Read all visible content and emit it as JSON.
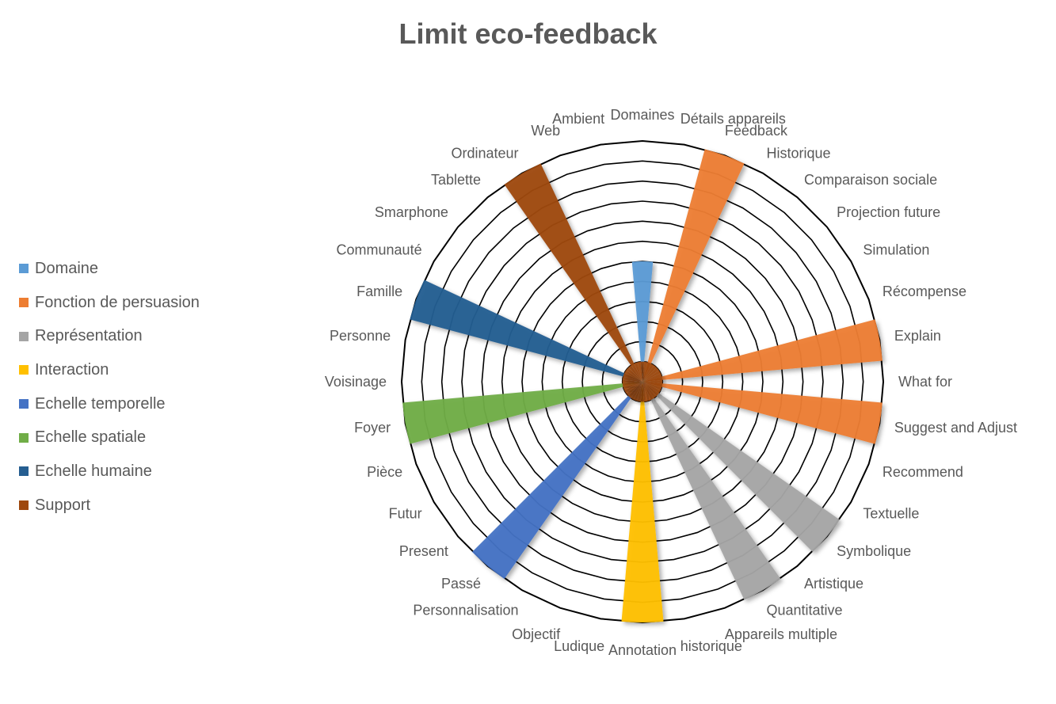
{
  "chart_data": {
    "type": "polar-area",
    "title": "Limit eco-feedback",
    "rmax": 12,
    "ring_count": 12,
    "categories": [
      "Domaines",
      "Détails appareils",
      "Feedback",
      "Historique",
      "Comparaison sociale",
      "Projection future",
      "Simulation",
      "Récompense",
      "Explain",
      "What for",
      "Suggest and Adjust",
      "Recommend",
      "Textuelle",
      "Symbolique",
      "Artistique",
      "Quantitative",
      "Appareils multiple",
      "historique",
      "Annotation",
      "Ludique",
      "Objectif",
      "Personnalisation",
      "Passé",
      "Present",
      "Futur",
      "Pièce",
      "Foyer",
      "Voisinage",
      "Personne",
      "Famille",
      "Communauté",
      "Smarphone",
      "Tablette",
      "Ordinateur",
      "Web",
      "Ambient"
    ],
    "series": [
      {
        "name": "Domaine",
        "color": "#5B9BD5",
        "values": [
          6,
          0,
          0,
          0,
          0,
          0,
          0,
          0,
          0,
          0,
          0,
          0,
          0,
          0,
          0,
          0,
          0,
          0,
          0,
          0,
          0,
          0,
          0,
          0,
          0,
          0,
          0,
          0,
          0,
          0,
          0,
          0,
          0,
          0,
          0,
          0
        ]
      },
      {
        "name": "Fonction de persuasion",
        "color": "#ED7D31",
        "values": [
          0,
          0,
          12,
          0,
          0,
          0,
          0,
          0,
          12,
          0,
          12,
          0,
          0,
          0,
          0,
          0,
          0,
          0,
          0,
          0,
          0,
          0,
          0,
          0,
          0,
          0,
          0,
          0,
          0,
          0,
          0,
          0,
          0,
          0,
          0,
          0
        ]
      },
      {
        "name": "Représentation",
        "color": "#A5A5A5",
        "values": [
          0,
          0,
          0,
          0,
          0,
          0,
          0,
          0,
          0,
          0,
          0,
          0,
          0,
          12,
          0,
          12,
          0,
          0,
          0,
          0,
          0,
          0,
          0,
          0,
          0,
          0,
          0,
          0,
          0,
          0,
          0,
          0,
          0,
          0,
          0,
          0
        ]
      },
      {
        "name": "Interaction",
        "color": "#FFC000",
        "values": [
          0,
          0,
          0,
          0,
          0,
          0,
          0,
          0,
          0,
          0,
          0,
          0,
          0,
          0,
          0,
          0,
          0,
          0,
          12,
          0,
          0,
          0,
          0,
          0,
          0,
          0,
          0,
          0,
          0,
          0,
          0,
          0,
          0,
          0,
          0,
          0
        ]
      },
      {
        "name": "Echelle temporelle",
        "color": "#4472C4",
        "values": [
          0,
          0,
          0,
          0,
          0,
          0,
          0,
          0,
          0,
          0,
          0,
          0,
          0,
          0,
          0,
          0,
          0,
          0,
          0,
          0,
          0,
          0,
          12,
          0,
          0,
          0,
          0,
          0,
          0,
          0,
          0,
          0,
          0,
          0,
          0,
          0
        ]
      },
      {
        "name": "Echelle spatiale",
        "color": "#70AD47",
        "values": [
          0,
          0,
          0,
          0,
          0,
          0,
          0,
          0,
          0,
          0,
          0,
          0,
          0,
          0,
          0,
          0,
          0,
          0,
          0,
          0,
          0,
          0,
          0,
          0,
          0,
          0,
          12,
          0,
          0,
          0,
          0,
          0,
          0,
          0,
          0,
          0
        ]
      },
      {
        "name": "Echelle humaine",
        "color": "#255E91",
        "values": [
          0,
          0,
          0,
          0,
          0,
          0,
          0,
          0,
          0,
          0,
          0,
          0,
          0,
          0,
          0,
          0,
          0,
          0,
          0,
          0,
          0,
          0,
          0,
          0,
          0,
          0,
          0,
          0,
          0,
          12,
          0,
          0,
          0,
          0,
          0,
          0
        ]
      },
      {
        "name": "Support",
        "color": "#9E480E",
        "values": [
          1,
          1,
          1,
          1,
          1,
          1,
          1,
          1,
          1,
          1,
          1,
          1,
          1,
          1,
          1,
          1,
          1,
          1,
          1,
          1,
          1,
          1,
          1,
          1,
          1,
          1,
          1,
          1,
          1,
          1,
          1,
          1,
          1,
          12,
          1,
          1
        ]
      }
    ]
  }
}
